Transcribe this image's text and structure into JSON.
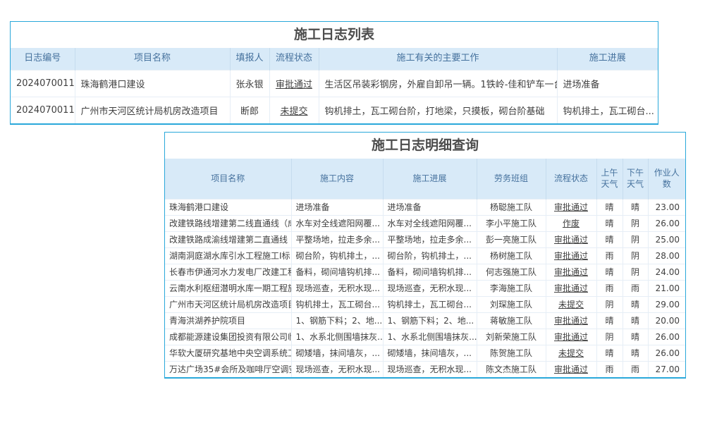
{
  "colors": {
    "outer_border": "#2aa8da",
    "header_bg": "#d8eaf8",
    "header_text": "#45719d",
    "link_blue": "#418fd0",
    "status_approved_green": "#2da05a",
    "status_not_submitted_blue": "#2f54d9",
    "status_voided_purple": "#9b3bb3",
    "body_text": "#3f3f3f",
    "title_text": "#4d4d4d"
  },
  "log_list": {
    "title": "施工日志列表",
    "columns": [
      "日志编号",
      "项目名称",
      "填报人",
      "流程状态",
      "施工有关的主要工作",
      "施工进展"
    ],
    "rows": [
      {
        "id": "2024070011",
        "project": "珠海鹤港口建设",
        "reporter": "张永银",
        "status": "审批通过",
        "status_type": "approved",
        "work": "生活区吊装彩钢房，外雇自卸吊一辆。1铁岭-佳和铲车一台",
        "progress": "进场准备"
      },
      {
        "id": "2024070011",
        "project": "广州市天河区统计局机房改造项目",
        "reporter": "断郎",
        "status": "未提交",
        "status_type": "not_submitted",
        "work": "钩机排土，瓦工砌台阶，打地梁，只摸板，砌台阶基础",
        "progress": "钩机排土，瓦工砌台..."
      }
    ]
  },
  "log_detail": {
    "title": "施工日志明细查询",
    "columns": [
      "项目名称",
      "施工内容",
      "施工进展",
      "劳务班组",
      "流程状态",
      "上午天气",
      "下午天气",
      "作业人数"
    ],
    "rows": [
      {
        "project": "珠海鹤港口建设",
        "content": "进场准备",
        "progress": "进场准备",
        "team": "杨聪施工队",
        "status": "审批通过",
        "status_type": "approved",
        "am": "晴",
        "pm": "晴",
        "workers": "23.00"
      },
      {
        "project": "改建铁路线增建第二线直通线（成都-",
        "content": "水车对全线遮阳网覆...",
        "progress": "水车对全线遮阳网覆...",
        "team": "李小平施工队",
        "status": "作废",
        "status_type": "voided",
        "am": "晴",
        "pm": "阴",
        "workers": "26.00"
      },
      {
        "project": "改建铁路成渝线增建第二直通线（成渝",
        "content": "平整场地，拉走多余...",
        "progress": "平整场地，拉走多余...",
        "team": "彭一亮施工队",
        "status": "审批通过",
        "status_type": "approved",
        "am": "晴",
        "pm": "阴",
        "workers": "25.00"
      },
      {
        "project": "湖南洞庭湖水库引水工程施工I标",
        "content": "砌台阶，钩机排土，...",
        "progress": "砌台阶，钩机排土，...",
        "team": "杨树施工队",
        "status": "审批通过",
        "status_type": "approved",
        "am": "雨",
        "pm": "阴",
        "workers": "28.00"
      },
      {
        "project": "长春市伊通河水力发电厂改建工程",
        "content": "备料，砌间墙钩机排...",
        "progress": "备料，砌间墙钩机排...",
        "team": "何志强施工队",
        "status": "审批通过",
        "status_type": "approved",
        "am": "晴",
        "pm": "阴",
        "workers": "24.00"
      },
      {
        "project": "云南水利枢纽潜明水库一期工程施工I",
        "content": "现场巡查，无积水现...",
        "progress": "现场巡查，无积水现...",
        "team": "李海施工队",
        "status": "审批通过",
        "status_type": "approved",
        "am": "雨",
        "pm": "雨",
        "workers": "21.00"
      },
      {
        "project": "广州市天河区统计局机房改造项目",
        "content": "钩机排土，瓦工砌台...",
        "progress": "钩机排土，瓦工砌台...",
        "team": "刘琛施工队",
        "status": "未提交",
        "status_type": "not_submitted",
        "am": "阴",
        "pm": "晴",
        "workers": "29.00"
      },
      {
        "project": "青海洪湖养护院项目",
        "content": "1、钢筋下料；2、地...",
        "progress": "1、钢筋下料；2、地...",
        "team": "蒋敏施工队",
        "status": "审批通过",
        "status_type": "approved",
        "am": "晴",
        "pm": "晴",
        "workers": "20.00"
      },
      {
        "project": "成都能源建设集团投资有限公司临时办",
        "content": "1、水系北侧围墙抹灰...",
        "progress": "1、水系北侧围墙抹灰...",
        "team": "刘新荣施工队",
        "status": "审批通过",
        "status_type": "approved",
        "am": "阴",
        "pm": "晴",
        "workers": "26.00"
      },
      {
        "project": "华软大厦研究基地中央空调系统工程",
        "content": "砌矮墙，抹间墙灰，...",
        "progress": "砌矮墙，抹间墙灰，...",
        "team": "陈贺施工队",
        "status": "未提交",
        "status_type": "not_submitted",
        "am": "晴",
        "pm": "晴",
        "workers": "26.00"
      },
      {
        "project": "万达广场35#会所及咖啡厅空调安装工程",
        "content": "现场巡查，无积水现...",
        "progress": "现场巡查，无积水现...",
        "team": "陈文杰施工队",
        "status": "审批通过",
        "status_type": "approved",
        "am": "雨",
        "pm": "雨",
        "workers": "27.00"
      }
    ]
  }
}
